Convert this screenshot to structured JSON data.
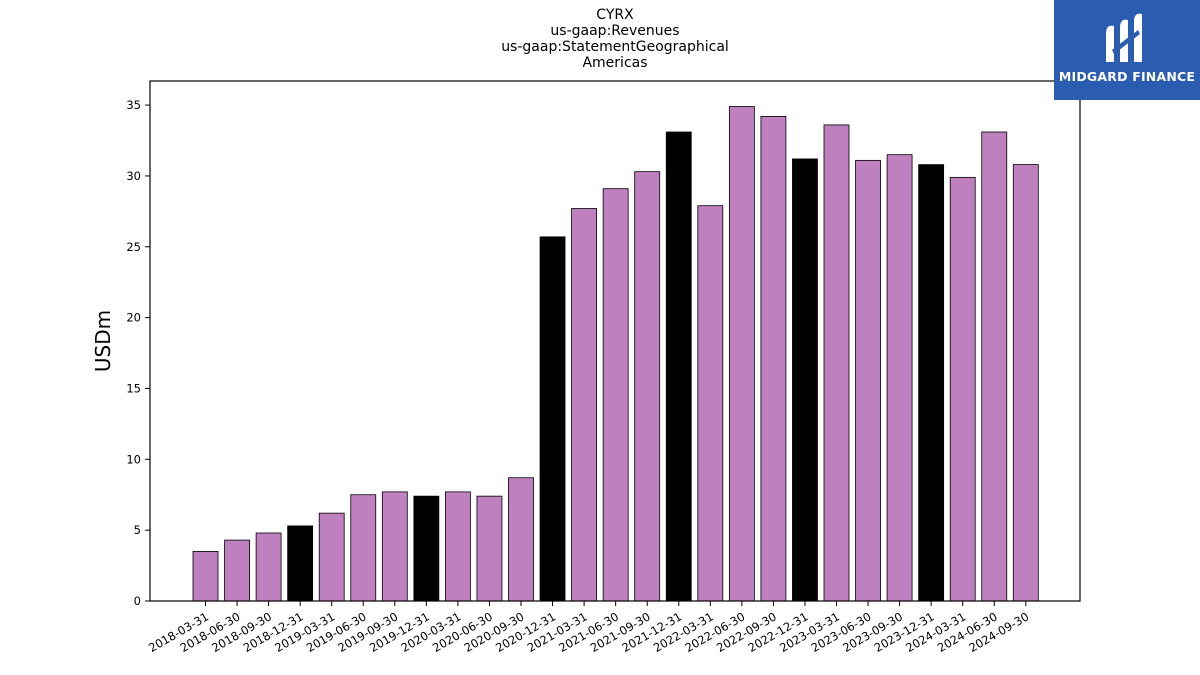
{
  "titles": [
    "CYRX",
    "us-gaap:Revenues",
    "us-gaap:StatementGeographical",
    "Americas"
  ],
  "logo": {
    "text": "MIDGARD FINANCE",
    "background": "#2a5db0",
    "icon": "midgard-logo-icon"
  },
  "colors": {
    "regular": "#bf80bf",
    "year_end": "#000000"
  },
  "chart_data": {
    "type": "bar",
    "title": "CYRX",
    "subtitles": [
      "us-gaap:Revenues",
      "us-gaap:StatementGeographical",
      "Americas"
    ],
    "xlabel": "",
    "ylabel": "USDm",
    "ylim": [
      0,
      36.7
    ],
    "yticks": [
      0,
      5,
      10,
      15,
      20,
      25,
      30,
      35
    ],
    "grid": false,
    "categories": [
      "2018-03-31",
      "2018-06-30",
      "2018-09-30",
      "2018-12-31",
      "2019-03-31",
      "2019-06-30",
      "2019-09-30",
      "2019-12-31",
      "2020-03-31",
      "2020-06-30",
      "2020-09-30",
      "2020-12-31",
      "2021-03-31",
      "2021-06-30",
      "2021-09-30",
      "2021-12-31",
      "2022-03-31",
      "2022-06-30",
      "2022-09-30",
      "2022-12-31",
      "2023-03-31",
      "2023-06-30",
      "2023-09-30",
      "2023-12-31",
      "2024-03-31",
      "2024-06-30",
      "2024-09-30"
    ],
    "values": [
      3.5,
      4.3,
      4.8,
      5.3,
      6.2,
      7.5,
      7.7,
      7.4,
      7.7,
      7.4,
      8.7,
      25.7,
      27.7,
      29.1,
      30.3,
      33.1,
      27.9,
      34.9,
      34.2,
      31.2,
      33.6,
      31.1,
      31.5,
      30.8,
      29.9,
      33.1,
      30.8
    ]
  }
}
